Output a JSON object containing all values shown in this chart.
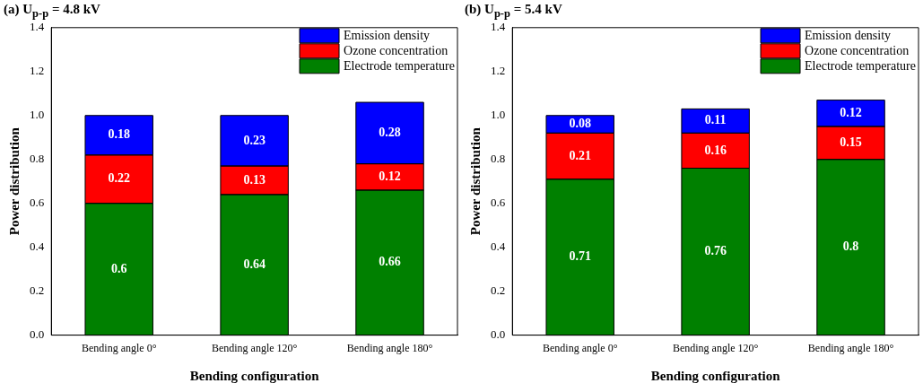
{
  "chart_data": [
    {
      "type": "bar",
      "title": "(a) U$_{p-p}$ = 4.8 kV",
      "xlabel": "Bending configuration",
      "ylabel": "Power distribution",
      "categories": [
        "Bending angle 0°",
        "Bending angle 120°",
        "Bending angle 180°"
      ],
      "stacked": true,
      "data_labels": true,
      "legend": "top right",
      "grid": false,
      "ylim": [
        0,
        1.4
      ],
      "yticks": [
        {
          "value": 0,
          "label": "0.0"
        },
        {
          "value": 0.2,
          "label": "0.2"
        },
        {
          "value": 0.4,
          "label": "0.4"
        },
        {
          "value": 0.6,
          "label": "0.6"
        },
        {
          "value": 0.8,
          "label": "0.8"
        },
        {
          "value": 1,
          "label": "1.0"
        },
        {
          "value": 1.2,
          "label": "1.2"
        },
        {
          "value": 1.4,
          "label": "1.4"
        }
      ],
      "series": [
        {
          "name": "Electrode temperature",
          "color": "#008000",
          "values": [
            0.6,
            0.64,
            0.66
          ]
        },
        {
          "name": "Ozone concentration",
          "color": "#ff0000",
          "values": [
            0.22,
            0.13,
            0.12
          ]
        },
        {
          "name": "Emission density",
          "color": "#0000ff",
          "values": [
            0.18,
            0.23,
            0.28
          ]
        }
      ]
    },
    {
      "type": "bar",
      "title": "(b) U$_{p-p}$ = 5.4 kV",
      "xlabel": "Bending configuration",
      "ylabel": "Power distribution",
      "categories": [
        "Bending angle 0°",
        "Bending angle 120°",
        "Bending angle 180°"
      ],
      "stacked": true,
      "data_labels": true,
      "legend": "top right",
      "grid": false,
      "ylim": [
        0,
        1.4
      ],
      "yticks": [
        {
          "value": 0,
          "label": "0.0"
        },
        {
          "value": 0.2,
          "label": "0.2"
        },
        {
          "value": 0.4,
          "label": "0.4"
        },
        {
          "value": 0.6,
          "label": "0.6"
        },
        {
          "value": 0.8,
          "label": "0.8"
        },
        {
          "value": 1,
          "label": "1.0"
        },
        {
          "value": 1.2,
          "label": "1.2"
        },
        {
          "value": 1.4,
          "label": "1.4"
        }
      ],
      "series": [
        {
          "name": "Electrode temperature",
          "color": "#008000",
          "values": [
            0.71,
            0.76,
            0.8
          ]
        },
        {
          "name": "Ozone concentration",
          "color": "#ff0000",
          "values": [
            0.21,
            0.16,
            0.15
          ]
        },
        {
          "name": "Emission density",
          "color": "#0000ff",
          "values": [
            0.08,
            0.11,
            0.12
          ]
        }
      ]
    }
  ]
}
